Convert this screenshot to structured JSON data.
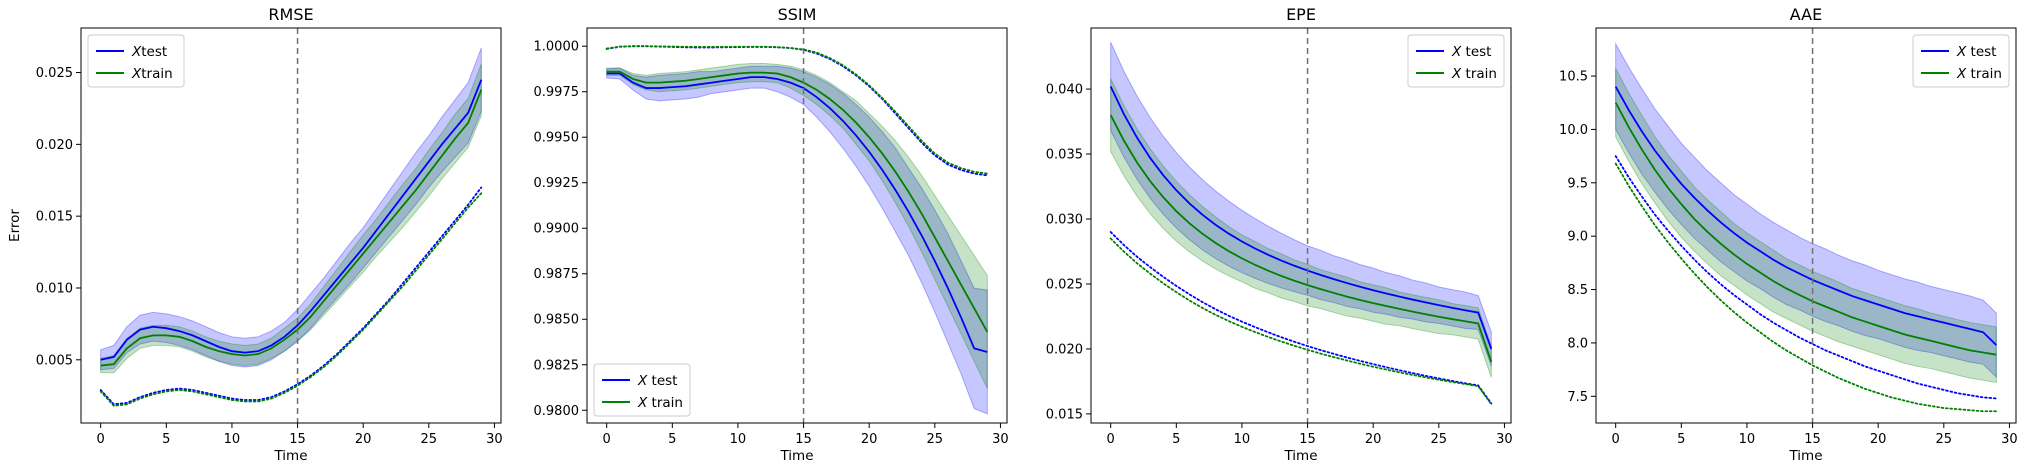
{
  "chart_data": [
    {
      "type": "line",
      "title": "RMSE",
      "xlabel": "Time",
      "ylabel": "Error",
      "xlim": [
        -1.5,
        30.5
      ],
      "ylim": [
        0.0006,
        0.0281
      ],
      "xticks": [
        0,
        5,
        10,
        15,
        20,
        25,
        30
      ],
      "yticks": [
        0.005,
        0.01,
        0.015,
        0.02,
        0.025
      ],
      "ytick_labels": [
        "0.005",
        "0.010",
        "0.015",
        "0.020",
        "0.025"
      ],
      "vline_x": 15,
      "legend_loc": "upper-left",
      "legend": [
        "Xtest",
        "Xtrain"
      ],
      "x": [
        0,
        1,
        2,
        3,
        4,
        5,
        6,
        7,
        8,
        9,
        10,
        11,
        12,
        13,
        14,
        15,
        16,
        17,
        18,
        19,
        20,
        21,
        22,
        23,
        24,
        25,
        26,
        27,
        28,
        29
      ],
      "series": [
        {
          "color": "#0000ff",
          "style": "solid",
          "mean": [
            0.005,
            0.0052,
            0.0064,
            0.0071,
            0.0073,
            0.0072,
            0.007,
            0.0067,
            0.0063,
            0.0059,
            0.0056,
            0.0055,
            0.0056,
            0.006,
            0.0066,
            0.0074,
            0.0084,
            0.0095,
            0.0106,
            0.0117,
            0.0128,
            0.014,
            0.0152,
            0.0164,
            0.0176,
            0.0188,
            0.02,
            0.0211,
            0.0222,
            0.0245
          ],
          "band": [
            0.0007,
            0.0008,
            0.0009,
            0.001,
            0.001,
            0.001,
            0.001,
            0.001,
            0.001,
            0.001,
            0.001,
            0.001,
            0.001,
            0.001,
            0.001,
            0.0011,
            0.0012,
            0.0012,
            0.0013,
            0.0014,
            0.0014,
            0.0015,
            0.0016,
            0.0017,
            0.0018,
            0.0018,
            0.0019,
            0.002,
            0.0021,
            0.0022
          ],
          "train": [
            0.0029,
            0.0019,
            0.002,
            0.0024,
            0.0027,
            0.0029,
            0.003,
            0.0029,
            0.0027,
            0.0025,
            0.0023,
            0.0022,
            0.0022,
            0.0024,
            0.0028,
            0.0033,
            0.0039,
            0.0046,
            0.0054,
            0.0063,
            0.0072,
            0.0082,
            0.0092,
            0.0103,
            0.0114,
            0.0125,
            0.0136,
            0.0147,
            0.0158,
            0.017
          ]
        },
        {
          "color": "#008000",
          "style": "solid",
          "mean": [
            0.0046,
            0.0047,
            0.0058,
            0.0065,
            0.0067,
            0.0067,
            0.0066,
            0.0063,
            0.0059,
            0.0056,
            0.0054,
            0.0053,
            0.0054,
            0.0058,
            0.0064,
            0.0071,
            0.008,
            0.0091,
            0.0102,
            0.0113,
            0.0124,
            0.0135,
            0.0146,
            0.0157,
            0.0168,
            0.018,
            0.0192,
            0.0204,
            0.0215,
            0.0238
          ],
          "band": [
            0.0005,
            0.0006,
            0.0007,
            0.0007,
            0.0007,
            0.0007,
            0.0007,
            0.0007,
            0.0007,
            0.0007,
            0.0007,
            0.0007,
            0.0007,
            0.0007,
            0.0008,
            0.0008,
            0.0009,
            0.001,
            0.0011,
            0.0012,
            0.0013,
            0.0013,
            0.0014,
            0.0015,
            0.0015,
            0.0016,
            0.0016,
            0.0017,
            0.0017,
            0.0018
          ],
          "train": [
            0.0028,
            0.0018,
            0.0019,
            0.0023,
            0.0026,
            0.0028,
            0.0029,
            0.0028,
            0.0026,
            0.0024,
            0.0022,
            0.0021,
            0.0021,
            0.0023,
            0.0027,
            0.0032,
            0.0038,
            0.0045,
            0.0053,
            0.0062,
            0.0071,
            0.0081,
            0.0091,
            0.0101,
            0.0112,
            0.0123,
            0.0134,
            0.0145,
            0.0156,
            0.0166
          ]
        }
      ]
    },
    {
      "type": "line",
      "title": "SSIM",
      "xlabel": "Time",
      "ylabel": "",
      "xlim": [
        -1.5,
        30.5
      ],
      "ylim": [
        0.9793,
        1.001
      ],
      "xticks": [
        0,
        5,
        10,
        15,
        20,
        25,
        30
      ],
      "yticks": [
        0.98,
        0.9825,
        0.985,
        0.9875,
        0.99,
        0.9925,
        0.995,
        0.9975,
        1.0
      ],
      "ytick_labels": [
        "0.9800",
        "0.9825",
        "0.9850",
        "0.9875",
        "0.9900",
        "0.9925",
        "0.9950",
        "0.9975",
        "1.0000"
      ],
      "vline_x": 15,
      "legend_loc": "lower-left",
      "legend": [
        "X test",
        "X train"
      ],
      "x": [
        0,
        1,
        2,
        3,
        4,
        5,
        6,
        7,
        8,
        9,
        10,
        11,
        12,
        13,
        14,
        15,
        16,
        17,
        18,
        19,
        20,
        21,
        22,
        23,
        24,
        25,
        26,
        27,
        28,
        29
      ],
      "series": [
        {
          "color": "#0000ff",
          "style": "solid",
          "mean": [
            0.9985,
            0.9985,
            0.998,
            0.9977,
            0.9977,
            0.99775,
            0.9978,
            0.9979,
            0.998,
            0.9981,
            0.9982,
            0.9983,
            0.9983,
            0.9982,
            0.998,
            0.9977,
            0.9972,
            0.9966,
            0.9959,
            0.9951,
            0.9942,
            0.9932,
            0.9921,
            0.9909,
            0.9896,
            0.9882,
            0.9867,
            0.9851,
            0.9834,
            0.9832
          ],
          "band": [
            0.00025,
            0.0003,
            0.0004,
            0.0006,
            0.0007,
            0.0007,
            0.0007,
            0.0007,
            0.0006,
            0.0006,
            0.0006,
            0.0006,
            0.0006,
            0.0007,
            0.0008,
            0.0009,
            0.0011,
            0.0013,
            0.0015,
            0.0017,
            0.0019,
            0.0021,
            0.0023,
            0.0024,
            0.0026,
            0.0028,
            0.003,
            0.0031,
            0.0033,
            0.0034
          ],
          "train": [
            0.99985,
            0.99997,
            1.0,
            1.0,
            0.99998,
            0.99996,
            0.99994,
            0.99993,
            0.99993,
            0.99994,
            0.99995,
            0.99996,
            0.99996,
            0.99994,
            0.9999,
            0.9998,
            0.9996,
            0.9993,
            0.9989,
            0.9984,
            0.9978,
            0.9971,
            0.9963,
            0.9955,
            0.9947,
            0.994,
            0.9935,
            0.9932,
            0.993,
            0.9929
          ]
        },
        {
          "color": "#008000",
          "style": "solid",
          "mean": [
            0.9986,
            0.9986,
            0.9982,
            0.998,
            0.998,
            0.99805,
            0.9981,
            0.9982,
            0.9983,
            0.9984,
            0.9985,
            0.99855,
            0.99855,
            0.9985,
            0.9983,
            0.998,
            0.9976,
            0.9971,
            0.9965,
            0.9958,
            0.995,
            0.9941,
            0.9931,
            0.992,
            0.9908,
            0.9895,
            0.9882,
            0.9869,
            0.9856,
            0.9843
          ],
          "band": [
            0.0002,
            0.0002,
            0.0003,
            0.0004,
            0.0005,
            0.0005,
            0.0005,
            0.0005,
            0.0005,
            0.0005,
            0.0005,
            0.0005,
            0.0005,
            0.0005,
            0.0006,
            0.0007,
            0.0008,
            0.0009,
            0.001,
            0.0012,
            0.0013,
            0.0015,
            0.0017,
            0.0019,
            0.0021,
            0.0023,
            0.0025,
            0.0027,
            0.0029,
            0.0031
          ],
          "train": [
            0.99987,
            0.99998,
            1.0,
            1.0,
            0.99999,
            0.99998,
            0.99997,
            0.99996,
            0.99996,
            0.99996,
            0.99997,
            0.99997,
            0.99997,
            0.99995,
            0.9999,
            0.99982,
            0.99965,
            0.99935,
            0.99895,
            0.99845,
            0.99785,
            0.99715,
            0.9964,
            0.9956,
            0.9948,
            0.9941,
            0.9936,
            0.9933,
            0.9931,
            0.993
          ]
        }
      ]
    },
    {
      "type": "line",
      "title": "EPE",
      "xlabel": "Time",
      "ylabel": "",
      "xlim": [
        -1.5,
        30.5
      ],
      "ylim": [
        0.0143,
        0.0447
      ],
      "xticks": [
        0,
        5,
        10,
        15,
        20,
        25,
        30
      ],
      "yticks": [
        0.015,
        0.02,
        0.025,
        0.03,
        0.035,
        0.04
      ],
      "ytick_labels": [
        "0.015",
        "0.020",
        "0.025",
        "0.030",
        "0.035",
        "0.040"
      ],
      "vline_x": 15,
      "legend_loc": "upper-right",
      "legend": [
        "X test",
        "X train"
      ],
      "x": [
        0,
        1,
        2,
        3,
        4,
        5,
        6,
        7,
        8,
        9,
        10,
        11,
        12,
        13,
        14,
        15,
        16,
        17,
        18,
        19,
        20,
        21,
        22,
        23,
        24,
        25,
        26,
        27,
        28,
        29
      ],
      "series": [
        {
          "color": "#0000ff",
          "style": "solid",
          "mean": [
            0.0402,
            0.03808,
            0.03627,
            0.03471,
            0.03337,
            0.03221,
            0.0312,
            0.03032,
            0.02955,
            0.02887,
            0.02827,
            0.02773,
            0.02724,
            0.0268,
            0.0264,
            0.02603,
            0.02569,
            0.02537,
            0.02507,
            0.02479,
            0.02452,
            0.02427,
            0.02403,
            0.0238,
            0.02358,
            0.02337,
            0.02317,
            0.02298,
            0.0228,
            0.02
          ],
          "band": [
            0.0034,
            0.0033,
            0.0032,
            0.0031,
            0.003,
            0.0029,
            0.0028,
            0.0027,
            0.0026,
            0.0025,
            0.0024,
            0.0023,
            0.0022,
            0.0021,
            0.002,
            0.0019,
            0.0019,
            0.0018,
            0.0018,
            0.0017,
            0.0017,
            0.0016,
            0.0016,
            0.0015,
            0.0015,
            0.0014,
            0.0014,
            0.0014,
            0.0013,
            0.0013
          ],
          "train": [
            0.029,
            0.028,
            0.0271,
            0.0263,
            0.02555,
            0.02485,
            0.0242,
            0.0236,
            0.02305,
            0.02255,
            0.0221,
            0.02168,
            0.02128,
            0.0209,
            0.02055,
            0.02022,
            0.01991,
            0.01962,
            0.01934,
            0.01908,
            0.01883,
            0.01859,
            0.01836,
            0.01814,
            0.01793,
            0.01773,
            0.01754,
            0.01736,
            0.01719,
            0.0158
          ]
        },
        {
          "color": "#008000",
          "style": "solid",
          "mean": [
            0.038,
            0.03604,
            0.03436,
            0.03292,
            0.03168,
            0.0306,
            0.02967,
            0.02886,
            0.02815,
            0.02752,
            0.02697,
            0.02647,
            0.02602,
            0.02562,
            0.02525,
            0.02491,
            0.0246,
            0.02431,
            0.02403,
            0.02377,
            0.02353,
            0.0233,
            0.02308,
            0.02287,
            0.02267,
            0.02248,
            0.0223,
            0.02213,
            0.02196,
            0.019
          ],
          "band": [
            0.0028,
            0.0027,
            0.0026,
            0.0025,
            0.0024,
            0.0023,
            0.0022,
            0.0021,
            0.002,
            0.0019,
            0.0018,
            0.0018,
            0.0017,
            0.0017,
            0.0016,
            0.0016,
            0.0015,
            0.0015,
            0.0015,
            0.0014,
            0.0014,
            0.0014,
            0.0013,
            0.0013,
            0.0013,
            0.0013,
            0.0012,
            0.0012,
            0.0012,
            0.0012
          ],
          "train": [
            0.0285,
            0.0275,
            0.0266,
            0.0258,
            0.02505,
            0.02437,
            0.02373,
            0.02315,
            0.02262,
            0.02214,
            0.0217,
            0.0213,
            0.02092,
            0.02057,
            0.02024,
            0.01993,
            0.01964,
            0.01937,
            0.01911,
            0.01886,
            0.01863,
            0.01841,
            0.0182,
            0.018,
            0.01781,
            0.01763,
            0.01746,
            0.0173,
            0.01714,
            0.01575
          ]
        }
      ]
    },
    {
      "type": "line",
      "title": "AAE",
      "xlabel": "Time",
      "ylabel": "",
      "xlim": [
        -1.5,
        30.5
      ],
      "ylim": [
        7.25,
        10.95
      ],
      "xticks": [
        0,
        5,
        10,
        15,
        20,
        25,
        30
      ],
      "yticks": [
        7.5,
        8.0,
        8.5,
        9.0,
        9.5,
        10.0,
        10.5
      ],
      "ytick_labels": [
        "7.5",
        "8.0",
        "8.5",
        "9.0",
        "9.5",
        "10.0",
        "10.5"
      ],
      "vline_x": 15,
      "legend_loc": "upper-right",
      "legend": [
        "X test",
        "X train"
      ],
      "x": [
        0,
        1,
        2,
        3,
        4,
        5,
        6,
        7,
        8,
        9,
        10,
        11,
        12,
        13,
        14,
        15,
        16,
        17,
        18,
        19,
        20,
        21,
        22,
        23,
        24,
        25,
        26,
        27,
        28,
        29
      ],
      "series": [
        {
          "color": "#0000ff",
          "style": "solid",
          "mean": [
            10.4,
            10.18,
            9.98,
            9.8,
            9.64,
            9.49,
            9.36,
            9.24,
            9.13,
            9.03,
            8.94,
            8.86,
            8.78,
            8.71,
            8.65,
            8.59,
            8.54,
            8.49,
            8.44,
            8.4,
            8.36,
            8.32,
            8.28,
            8.25,
            8.22,
            8.19,
            8.16,
            8.13,
            8.1,
            7.98
          ],
          "band": [
            0.4,
            0.4,
            0.4,
            0.39,
            0.39,
            0.38,
            0.38,
            0.37,
            0.37,
            0.36,
            0.36,
            0.35,
            0.35,
            0.35,
            0.34,
            0.34,
            0.34,
            0.33,
            0.33,
            0.33,
            0.32,
            0.32,
            0.32,
            0.32,
            0.31,
            0.31,
            0.31,
            0.31,
            0.3,
            0.3
          ],
          "train": [
            9.75,
            9.55,
            9.37,
            9.2,
            9.05,
            8.91,
            8.78,
            8.66,
            8.55,
            8.45,
            8.36,
            8.27,
            8.19,
            8.12,
            8.05,
            7.99,
            7.93,
            7.88,
            7.83,
            7.78,
            7.74,
            7.7,
            7.66,
            7.62,
            7.59,
            7.56,
            7.53,
            7.51,
            7.49,
            7.48
          ]
        },
        {
          "color": "#008000",
          "style": "solid",
          "mean": [
            10.25,
            10.02,
            9.81,
            9.62,
            9.45,
            9.3,
            9.16,
            9.04,
            8.93,
            8.83,
            8.74,
            8.66,
            8.58,
            8.51,
            8.45,
            8.39,
            8.34,
            8.29,
            8.24,
            8.2,
            8.16,
            8.12,
            8.08,
            8.05,
            8.02,
            7.99,
            7.96,
            7.93,
            7.91,
            7.89
          ],
          "band": [
            0.32,
            0.32,
            0.32,
            0.31,
            0.31,
            0.31,
            0.3,
            0.3,
            0.3,
            0.29,
            0.29,
            0.29,
            0.29,
            0.28,
            0.28,
            0.28,
            0.28,
            0.28,
            0.27,
            0.27,
            0.27,
            0.27,
            0.27,
            0.27,
            0.26,
            0.26,
            0.26,
            0.26,
            0.26,
            0.26
          ],
          "train": [
            9.68,
            9.47,
            9.28,
            9.1,
            8.94,
            8.79,
            8.65,
            8.52,
            8.4,
            8.29,
            8.19,
            8.1,
            8.01,
            7.93,
            7.86,
            7.79,
            7.73,
            7.67,
            7.62,
            7.57,
            7.53,
            7.49,
            7.46,
            7.43,
            7.41,
            7.39,
            7.38,
            7.37,
            7.36,
            7.36
          ]
        }
      ]
    }
  ]
}
